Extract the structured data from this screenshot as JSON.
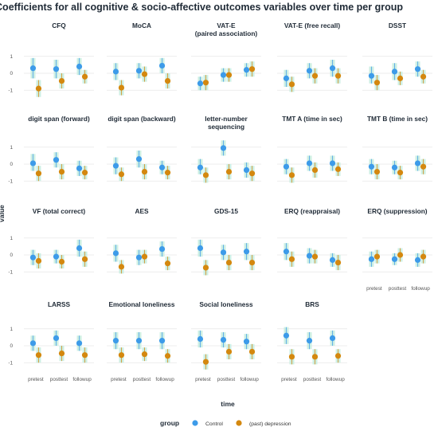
{
  "chart_data": {
    "type": "scatter",
    "title": "Coefficients for all cognitive & socio-affective outcomes variables over time per group",
    "xlabel": "time",
    "ylabel": "value",
    "categories": [
      "pretest",
      "posttest",
      "followup"
    ],
    "yticks": [
      1,
      0,
      -1
    ],
    "ylim": [
      -1.6,
      1.6
    ],
    "legend": {
      "title": "group",
      "position": "bottom",
      "entries": [
        {
          "name": "Control",
          "color": "#3d9be9"
        },
        {
          "name": "(past) depression",
          "color": "#d4880f"
        }
      ]
    },
    "error_band_color": "#c8ede0",
    "panels": [
      {
        "title": [
          "CFQ"
        ],
        "series": [
          {
            "name": "Control",
            "values": [
              0.3,
              0.25,
              0.4
            ],
            "ci": [
              [
                -0.3,
                0.9
              ],
              [
                -0.3,
                0.8
              ],
              [
                -0.1,
                0.9
              ]
            ]
          },
          {
            "name": "(past) depression",
            "values": [
              -0.9,
              -0.45,
              -0.2
            ],
            "ci": [
              [
                -1.4,
                -0.4
              ],
              [
                -0.9,
                0.0
              ],
              [
                -0.6,
                0.2
              ]
            ]
          }
        ]
      },
      {
        "title": [
          "MoCA"
        ],
        "series": [
          {
            "name": "Control",
            "values": [
              0.1,
              0.15,
              0.45
            ],
            "ci": [
              [
                -0.4,
                0.6
              ],
              [
                -0.3,
                0.6
              ],
              [
                0.0,
                0.9
              ]
            ]
          },
          {
            "name": "(past) depression",
            "values": [
              -0.85,
              -0.05,
              -0.45
            ],
            "ci": [
              [
                -1.3,
                -0.4
              ],
              [
                -0.5,
                0.4
              ],
              [
                -0.9,
                -0.0
              ]
            ]
          }
        ]
      },
      {
        "title": [
          "VAT-E",
          "(paired association)"
        ],
        "series": [
          {
            "name": "Control",
            "values": [
              -0.6,
              -0.1,
              0.2
            ],
            "ci": [
              [
                -1.0,
                -0.2
              ],
              [
                -0.5,
                0.3
              ],
              [
                -0.2,
                0.6
              ]
            ]
          },
          {
            "name": "(past) depression",
            "values": [
              -0.55,
              -0.1,
              0.25
            ],
            "ci": [
              [
                -1.0,
                -0.1
              ],
              [
                -0.5,
                0.3
              ],
              [
                -0.2,
                0.7
              ]
            ]
          }
        ]
      },
      {
        "title": [
          "VAT-E (free recall)"
        ],
        "series": [
          {
            "name": "Control",
            "values": [
              -0.3,
              0.15,
              0.3
            ],
            "ci": [
              [
                -0.8,
                0.2
              ],
              [
                -0.3,
                0.6
              ],
              [
                -0.2,
                0.8
              ]
            ]
          },
          {
            "name": "(past) depression",
            "values": [
              -0.65,
              -0.15,
              -0.15
            ],
            "ci": [
              [
                -1.1,
                -0.2
              ],
              [
                -0.6,
                0.3
              ],
              [
                -0.6,
                0.3
              ]
            ]
          }
        ]
      },
      {
        "title": [
          "DSST"
        ],
        "series": [
          {
            "name": "Control",
            "values": [
              -0.15,
              0.1,
              0.25
            ],
            "ci": [
              [
                -0.6,
                0.4
              ],
              [
                -0.4,
                0.6
              ],
              [
                -0.2,
                0.7
              ]
            ]
          },
          {
            "name": "(past) depression",
            "values": [
              -0.55,
              -0.3,
              -0.2
            ],
            "ci": [
              [
                -1.0,
                -0.1
              ],
              [
                -0.7,
                0.1
              ],
              [
                -0.6,
                0.2
              ]
            ]
          }
        ]
      },
      {
        "title": [
          "digit span (forward)"
        ],
        "series": [
          {
            "name": "Control",
            "values": [
              0.05,
              0.25,
              -0.25
            ],
            "ci": [
              [
                -0.4,
                0.6
              ],
              [
                -0.2,
                0.7
              ],
              [
                -0.7,
                0.2
              ]
            ]
          },
          {
            "name": "(past) depression",
            "values": [
              -0.55,
              -0.45,
              -0.5
            ],
            "ci": [
              [
                -1.0,
                -0.1
              ],
              [
                -0.9,
                0.0
              ],
              [
                -0.9,
                -0.1
              ]
            ]
          }
        ]
      },
      {
        "title": [
          "digit span (backward)"
        ],
        "series": [
          {
            "name": "Control",
            "values": [
              -0.1,
              0.3,
              -0.2
            ],
            "ci": [
              [
                -0.6,
                0.4
              ],
              [
                -0.2,
                0.8
              ],
              [
                -0.6,
                0.2
              ]
            ]
          },
          {
            "name": "(past) depression",
            "values": [
              -0.6,
              -0.45,
              -0.5
            ],
            "ci": [
              [
                -1.0,
                -0.2
              ],
              [
                -0.9,
                0.0
              ],
              [
                -0.9,
                -0.1
              ]
            ]
          }
        ]
      },
      {
        "title": [
          "letter-number",
          "sequencing"
        ],
        "series": [
          {
            "name": "Control",
            "values": [
              -0.2,
              0.95,
              -0.35
            ],
            "ci": [
              [
                -0.6,
                0.3
              ],
              [
                0.5,
                1.4
              ],
              [
                -0.8,
                0.1
              ]
            ]
          },
          {
            "name": "(past) depression",
            "values": [
              -0.65,
              -0.45,
              -0.55
            ],
            "ci": [
              [
                -1.1,
                -0.2
              ],
              [
                -0.9,
                0.0
              ],
              [
                -1.0,
                -0.1
              ]
            ]
          }
        ]
      },
      {
        "title": [
          "TMT A (time in sec)"
        ],
        "series": [
          {
            "name": "Control",
            "values": [
              -0.15,
              0.05,
              0.05
            ],
            "ci": [
              [
                -0.6,
                0.3
              ],
              [
                -0.4,
                0.5
              ],
              [
                -0.4,
                0.5
              ]
            ]
          },
          {
            "name": "(past) depression",
            "values": [
              -0.65,
              -0.35,
              -0.3
            ],
            "ci": [
              [
                -1.1,
                -0.2
              ],
              [
                -0.8,
                0.1
              ],
              [
                -0.7,
                0.1
              ]
            ]
          }
        ]
      },
      {
        "title": [
          "TMT B (time in sec)"
        ],
        "series": [
          {
            "name": "Control",
            "values": [
              -0.15,
              -0.2,
              0.05
            ],
            "ci": [
              [
                -0.6,
                0.3
              ],
              [
                -0.6,
                0.2
              ],
              [
                -0.4,
                0.5
              ]
            ]
          },
          {
            "name": "(past) depression",
            "values": [
              -0.45,
              -0.5,
              -0.15
            ],
            "ci": [
              [
                -0.9,
                0.0
              ],
              [
                -0.9,
                -0.1
              ],
              [
                -0.6,
                0.3
              ]
            ]
          }
        ]
      },
      {
        "title": [
          "VF (total correct)"
        ],
        "series": [
          {
            "name": "Control",
            "values": [
              -0.15,
              -0.1,
              0.4
            ],
            "ci": [
              [
                -0.6,
                0.3
              ],
              [
                -0.5,
                0.3
              ],
              [
                -0.1,
                0.9
              ]
            ]
          },
          {
            "name": "(past) depression",
            "values": [
              -0.35,
              -0.4,
              -0.25
            ],
            "ci": [
              [
                -0.8,
                0.1
              ],
              [
                -0.8,
                0.0
              ],
              [
                -0.7,
                0.2
              ]
            ]
          }
        ]
      },
      {
        "title": [
          "AES"
        ],
        "series": [
          {
            "name": "Control",
            "values": [
              0.1,
              -0.15,
              0.35
            ],
            "ci": [
              [
                -0.4,
                0.6
              ],
              [
                -0.6,
                0.3
              ],
              [
                -0.1,
                0.8
              ]
            ]
          },
          {
            "name": "(past) depression",
            "values": [
              -0.7,
              -0.1,
              -0.5
            ],
            "ci": [
              [
                -1.1,
                -0.3
              ],
              [
                -0.5,
                0.3
              ],
              [
                -0.9,
                -0.1
              ]
            ]
          }
        ]
      },
      {
        "title": [
          "GDS-15"
        ],
        "series": [
          {
            "name": "Control",
            "values": [
              0.4,
              0.15,
              0.2
            ],
            "ci": [
              [
                -0.1,
                0.9
              ],
              [
                -0.3,
                0.6
              ],
              [
                -0.3,
                0.7
              ]
            ]
          },
          {
            "name": "(past) depression",
            "values": [
              -0.75,
              -0.45,
              -0.45
            ],
            "ci": [
              [
                -1.2,
                -0.3
              ],
              [
                -0.9,
                0.0
              ],
              [
                -0.9,
                0.0
              ]
            ]
          }
        ]
      },
      {
        "title": [
          "ERQ (reappraisal)"
        ],
        "series": [
          {
            "name": "Control",
            "values": [
              0.2,
              -0.05,
              -0.3
            ],
            "ci": [
              [
                -0.3,
                0.7
              ],
              [
                -0.5,
                0.4
              ],
              [
                -0.7,
                0.1
              ]
            ]
          },
          {
            "name": "(past) depression",
            "values": [
              -0.25,
              -0.1,
              -0.45
            ],
            "ci": [
              [
                -0.7,
                0.2
              ],
              [
                -0.5,
                0.3
              ],
              [
                -0.9,
                0.0
              ]
            ]
          }
        ]
      },
      {
        "title": [
          "ERQ (suppression)"
        ],
        "series": [
          {
            "name": "Control",
            "values": [
              -0.25,
              -0.25,
              -0.3
            ],
            "ci": [
              [
                -0.7,
                0.2
              ],
              [
                -0.6,
                0.1
              ],
              [
                -0.7,
                0.1
              ]
            ]
          },
          {
            "name": "(past) depression",
            "values": [
              -0.1,
              0.0,
              -0.1
            ],
            "ci": [
              [
                -0.5,
                0.3
              ],
              [
                -0.4,
                0.4
              ],
              [
                -0.5,
                0.3
              ]
            ]
          }
        ]
      },
      {
        "title": [
          "LARSS"
        ],
        "series": [
          {
            "name": "Control",
            "values": [
              0.15,
              0.45,
              0.15
            ],
            "ci": [
              [
                -0.3,
                0.6
              ],
              [
                0.0,
                0.9
              ],
              [
                -0.3,
                0.6
              ]
            ]
          },
          {
            "name": "(past) depression",
            "values": [
              -0.55,
              -0.45,
              -0.55
            ],
            "ci": [
              [
                -1.0,
                -0.1
              ],
              [
                -0.9,
                0.0
              ],
              [
                -1.0,
                -0.1
              ]
            ]
          }
        ]
      },
      {
        "title": [
          "Emotional loneliness"
        ],
        "series": [
          {
            "name": "Control",
            "values": [
              0.3,
              0.3,
              0.3
            ],
            "ci": [
              [
                -0.2,
                0.8
              ],
              [
                -0.2,
                0.8
              ],
              [
                -0.2,
                0.8
              ]
            ]
          },
          {
            "name": "(past) depression",
            "values": [
              -0.55,
              -0.5,
              -0.6
            ],
            "ci": [
              [
                -1.0,
                -0.1
              ],
              [
                -0.9,
                -0.1
              ],
              [
                -1.0,
                -0.2
              ]
            ]
          }
        ]
      },
      {
        "title": [
          "Social loneliness"
        ],
        "series": [
          {
            "name": "Control",
            "values": [
              0.4,
              0.35,
              0.25
            ],
            "ci": [
              [
                -0.1,
                0.9
              ],
              [
                -0.1,
                0.8
              ],
              [
                -0.2,
                0.7
              ]
            ]
          },
          {
            "name": "(past) depression",
            "values": [
              -0.95,
              -0.35,
              -0.35
            ],
            "ci": [
              [
                -1.4,
                -0.5
              ],
              [
                -0.8,
                0.1
              ],
              [
                -0.8,
                0.1
              ]
            ]
          }
        ]
      },
      {
        "title": [
          "BRS"
        ],
        "series": [
          {
            "name": "Control",
            "values": [
              0.6,
              0.3,
              0.45
            ],
            "ci": [
              [
                0.1,
                1.1
              ],
              [
                -0.2,
                0.8
              ],
              [
                0.0,
                0.9
              ]
            ]
          },
          {
            "name": "(past) depression",
            "values": [
              -0.65,
              -0.65,
              -0.6
            ],
            "ci": [
              [
                -1.1,
                -0.2
              ],
              [
                -1.1,
                -0.2
              ],
              [
                -1.0,
                -0.2
              ]
            ]
          }
        ]
      }
    ]
  }
}
